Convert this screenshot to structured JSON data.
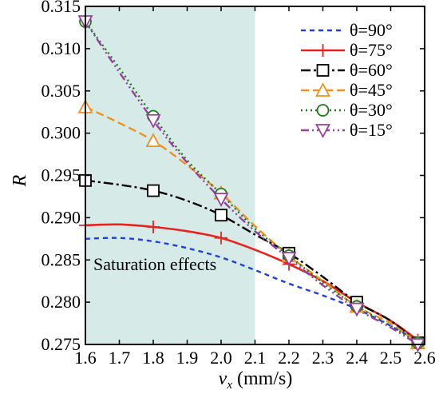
{
  "chart_data": {
    "type": "line",
    "xlabel_var": "v",
    "xlabel_sub": "x",
    "xlabel_unit": " (mm/s)",
    "ylabel": "R",
    "xlim": [
      1.6,
      2.6
    ],
    "ylim": [
      0.275,
      0.315
    ],
    "x_ticks": [
      "1.6",
      "1.7",
      "1.8",
      "1.9",
      "2.0",
      "2.1",
      "2.2",
      "2.3",
      "2.4",
      "2.5",
      "2.6"
    ],
    "y_ticks": [
      "0.275",
      "0.280",
      "0.285",
      "0.290",
      "0.295",
      "0.300",
      "0.305",
      "0.310",
      "0.315"
    ],
    "shaded_region": {
      "x": [
        1.6,
        2.1
      ],
      "color": "#d6ebe8",
      "label": "Saturation effects"
    },
    "legend_position": "top-right",
    "series": [
      {
        "name": "θ=90°",
        "theta": "90",
        "color": "#1f3fe0",
        "dash": "6,5",
        "marker": "none",
        "x": [
          1.6,
          1.7,
          1.8,
          1.9,
          2.0,
          2.1,
          2.2,
          2.3,
          2.4,
          2.5,
          2.58
        ],
        "y": [
          0.2875,
          0.2876,
          0.2872,
          0.2864,
          0.2853,
          0.2838,
          0.2822,
          0.2808,
          0.2792,
          0.2772,
          0.2754
        ],
        "marker_x": []
      },
      {
        "name": "θ=75°",
        "theta": "75",
        "color": "#e8231f",
        "dash": "none",
        "marker": "plus",
        "x": [
          1.6,
          1.7,
          1.8,
          1.9,
          2.0,
          2.1,
          2.2,
          2.3,
          2.4,
          2.5,
          2.58
        ],
        "y": [
          0.2891,
          0.2892,
          0.2889,
          0.2884,
          0.2876,
          0.2862,
          0.2845,
          0.2825,
          0.28,
          0.2778,
          0.2755
        ],
        "marker_x": [
          1.6,
          1.8,
          2.0,
          2.2,
          2.4,
          2.58
        ]
      },
      {
        "name": "θ=60°",
        "theta": "60",
        "color": "#000000",
        "dash": "12,4,3,4",
        "marker": "square",
        "x": [
          1.6,
          1.7,
          1.8,
          1.9,
          2.0,
          2.1,
          2.2,
          2.3,
          2.4,
          2.5,
          2.58
        ],
        "y": [
          0.2944,
          0.2939,
          0.2932,
          0.292,
          0.2903,
          0.288,
          0.2858,
          0.283,
          0.28,
          0.2778,
          0.2752
        ],
        "marker_x": [
          1.6,
          1.8,
          2.0,
          2.2,
          2.4,
          2.58
        ]
      },
      {
        "name": "θ=45°",
        "theta": "45",
        "color": "#f0901e",
        "dash": "10,5",
        "marker": "triangle-up",
        "x": [
          1.6,
          1.7,
          1.8,
          1.9,
          2.0,
          2.1,
          2.2,
          2.3,
          2.4,
          2.5,
          2.58
        ],
        "y": [
          0.3031,
          0.3012,
          0.2991,
          0.2962,
          0.2929,
          0.289,
          0.2855,
          0.2825,
          0.2795,
          0.2775,
          0.2752
        ],
        "marker_x": [
          1.6,
          1.8,
          2.0,
          2.2,
          2.4,
          2.58
        ]
      },
      {
        "name": "θ=30°",
        "theta": "30",
        "color": "#1a7d1a",
        "dash": "2,4",
        "marker": "circle",
        "x": [
          1.6,
          1.7,
          1.8,
          1.9,
          2.0,
          2.1,
          2.2,
          2.3,
          2.4,
          2.5,
          2.58
        ],
        "y": [
          0.3132,
          0.3077,
          0.302,
          0.2968,
          0.2928,
          0.2887,
          0.2855,
          0.2823,
          0.2795,
          0.2772,
          0.2752
        ],
        "marker_x": [
          1.6,
          1.8,
          2.0,
          2.2,
          2.4,
          2.58
        ]
      },
      {
        "name": "θ=15°",
        "theta": "15",
        "color": "#9b3d9b",
        "dash": "10,4,2,4,2,4",
        "marker": "triangle-down",
        "x": [
          1.6,
          1.7,
          1.8,
          1.9,
          2.0,
          2.1,
          2.2,
          2.3,
          2.4,
          2.5,
          2.58
        ],
        "y": [
          0.3132,
          0.3072,
          0.3015,
          0.2965,
          0.2922,
          0.2884,
          0.2852,
          0.282,
          0.2792,
          0.277,
          0.275
        ],
        "marker_x": [
          1.6,
          1.8,
          2.0,
          2.2,
          2.4,
          2.58
        ]
      }
    ]
  }
}
